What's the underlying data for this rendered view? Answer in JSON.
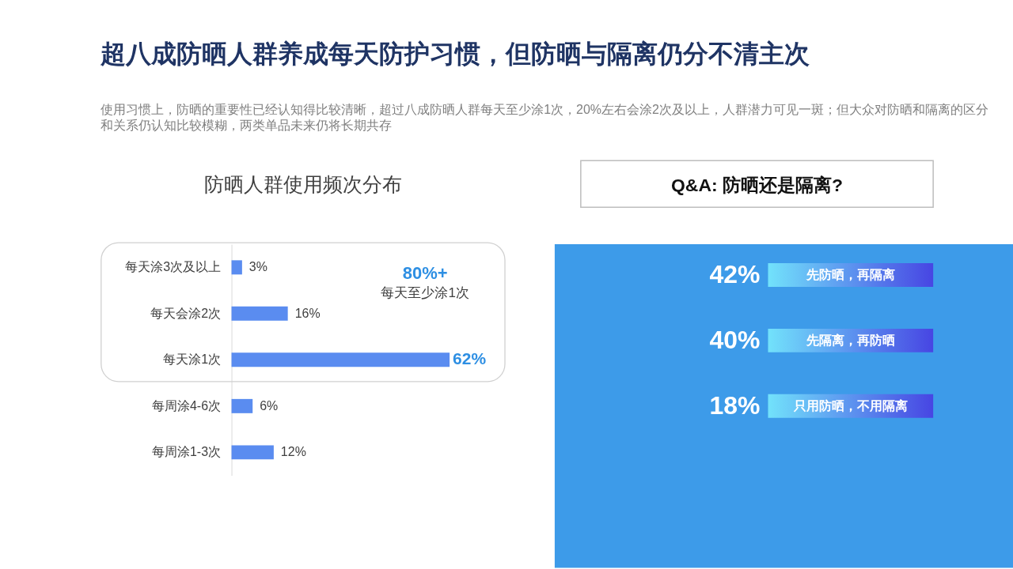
{
  "chart_data": [
    {
      "type": "other",
      "title": "超八成防晒人群养成每天防护习惯，但防晒与隔离仍分不清主次",
      "subtitle": "使用习惯上，防晒的重要性已经认知得比较清晰，超过八成防晒人群每天至少涂1次，20%左右会涂2次及以上，人群潜力可见一斑；但大众对防晒和隔离的区分和关系仍认知比较模糊，两类单品未来仍将长期共存"
    },
    {
      "type": "bar",
      "orientation": "horizontal",
      "title": "防晒人群使用频次分布",
      "categories": [
        "每天涂3次及以上",
        "每天会涂2次",
        "每天涂1次",
        "每周涂4-6次",
        "每周涂1-3次"
      ],
      "values": [
        3,
        16,
        62,
        6,
        12
      ],
      "value_labels": [
        "3%",
        "16%",
        "62%",
        "6%",
        "12%"
      ],
      "color": "#5a8cf0",
      "tick_labels": "y",
      "annotations": [
        "80%+",
        "每天至少涂1次"
      ]
    },
    {
      "type": "other",
      "title": "Q&A: 防晒还是隔离?",
      "categories": [
        "先防晒，再隔离",
        "先隔离，再防晒",
        "只用防晒，不用隔离"
      ],
      "values": [
        42,
        40,
        18
      ],
      "value_labels": [
        "42%",
        "40%",
        "18%"
      ]
    }
  ]
}
